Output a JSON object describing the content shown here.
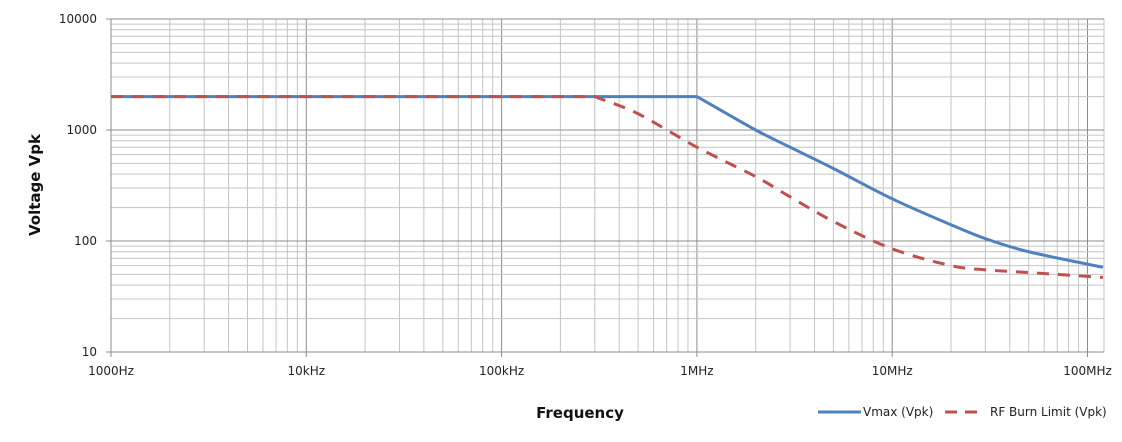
{
  "chart_data": {
    "type": "line",
    "title": "",
    "xlabel": "Frequency",
    "ylabel": "Voltage Vpk",
    "x_scale": "log",
    "y_scale": "log",
    "xlim": [
      1000,
      120000000
    ],
    "ylim": [
      10,
      10000
    ],
    "x_ticks": [
      {
        "value": 1000,
        "label": "1000Hz"
      },
      {
        "value": 10000,
        "label": "10kHz"
      },
      {
        "value": 100000,
        "label": "100kHz"
      },
      {
        "value": 1000000,
        "label": "1MHz"
      },
      {
        "value": 10000000,
        "label": "10MHz"
      },
      {
        "value": 100000000,
        "label": "100MHz"
      }
    ],
    "y_ticks": [
      {
        "value": 10,
        "label": "10"
      },
      {
        "value": 100,
        "label": "100"
      },
      {
        "value": 1000,
        "label": "1000"
      },
      {
        "value": 10000,
        "label": "10000"
      }
    ],
    "grid": true,
    "legend_position": "bottom-right",
    "series": [
      {
        "name": "Vmax (Vpk)",
        "color": "#4f81bd",
        "style": "solid",
        "x": [
          1000,
          10000,
          100000,
          1000000,
          2000000,
          3000000,
          5000000,
          10000000,
          20000000,
          30000000,
          50000000,
          120000000
        ],
        "values": [
          2000,
          2000,
          2000,
          2000,
          1000,
          700,
          450,
          240,
          140,
          105,
          80,
          58
        ]
      },
      {
        "name": "RF Burn Limit (Vpk)",
        "color": "#c0504d",
        "style": "dashed",
        "x": [
          1000,
          10000,
          100000,
          300000,
          500000,
          1000000,
          2000000,
          3000000,
          5000000,
          10000000,
          20000000,
          30000000,
          50000000,
          120000000
        ],
        "values": [
          2000,
          2000,
          2000,
          2000,
          1400,
          700,
          380,
          250,
          150,
          85,
          60,
          55,
          52,
          47
        ]
      }
    ]
  }
}
